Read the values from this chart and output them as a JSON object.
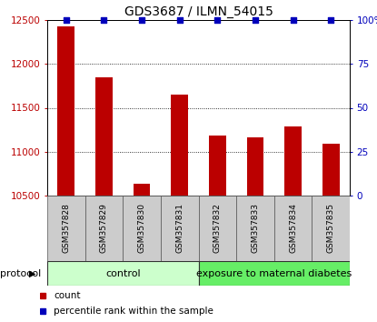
{
  "title": "GDS3687 / ILMN_54015",
  "samples": [
    "GSM357828",
    "GSM357829",
    "GSM357830",
    "GSM357831",
    "GSM357832",
    "GSM357833",
    "GSM357834",
    "GSM357835"
  ],
  "counts": [
    12430,
    11850,
    10630,
    11650,
    11180,
    11160,
    11290,
    11090
  ],
  "percentile_ranks": [
    100,
    100,
    100,
    100,
    100,
    100,
    100,
    100
  ],
  "bar_color": "#bb0000",
  "percentile_color": "#0000bb",
  "ylim_left": [
    10500,
    12500
  ],
  "ylim_right": [
    0,
    100
  ],
  "yticks_left": [
    10500,
    11000,
    11500,
    12000,
    12500
  ],
  "yticks_right": [
    0,
    25,
    50,
    75,
    100
  ],
  "ytick_right_labels": [
    "0",
    "25",
    "50",
    "75",
    "100%"
  ],
  "protocol_groups": [
    {
      "label": "control",
      "start": 0,
      "end": 3,
      "color": "#ccffcc"
    },
    {
      "label": "exposure to maternal diabetes",
      "start": 4,
      "end": 7,
      "color": "#66ee66"
    }
  ],
  "legend_items": [
    {
      "label": "count",
      "color": "#bb0000"
    },
    {
      "label": "percentile rank within the sample",
      "color": "#0000bb"
    }
  ],
  "protocol_label": "protocol",
  "background_color": "#ffffff",
  "tick_label_area_color": "#cccccc",
  "title_fontsize": 10,
  "tick_fontsize": 7.5,
  "sample_fontsize": 6.5,
  "protocol_fontsize": 8,
  "legend_fontsize": 7.5
}
